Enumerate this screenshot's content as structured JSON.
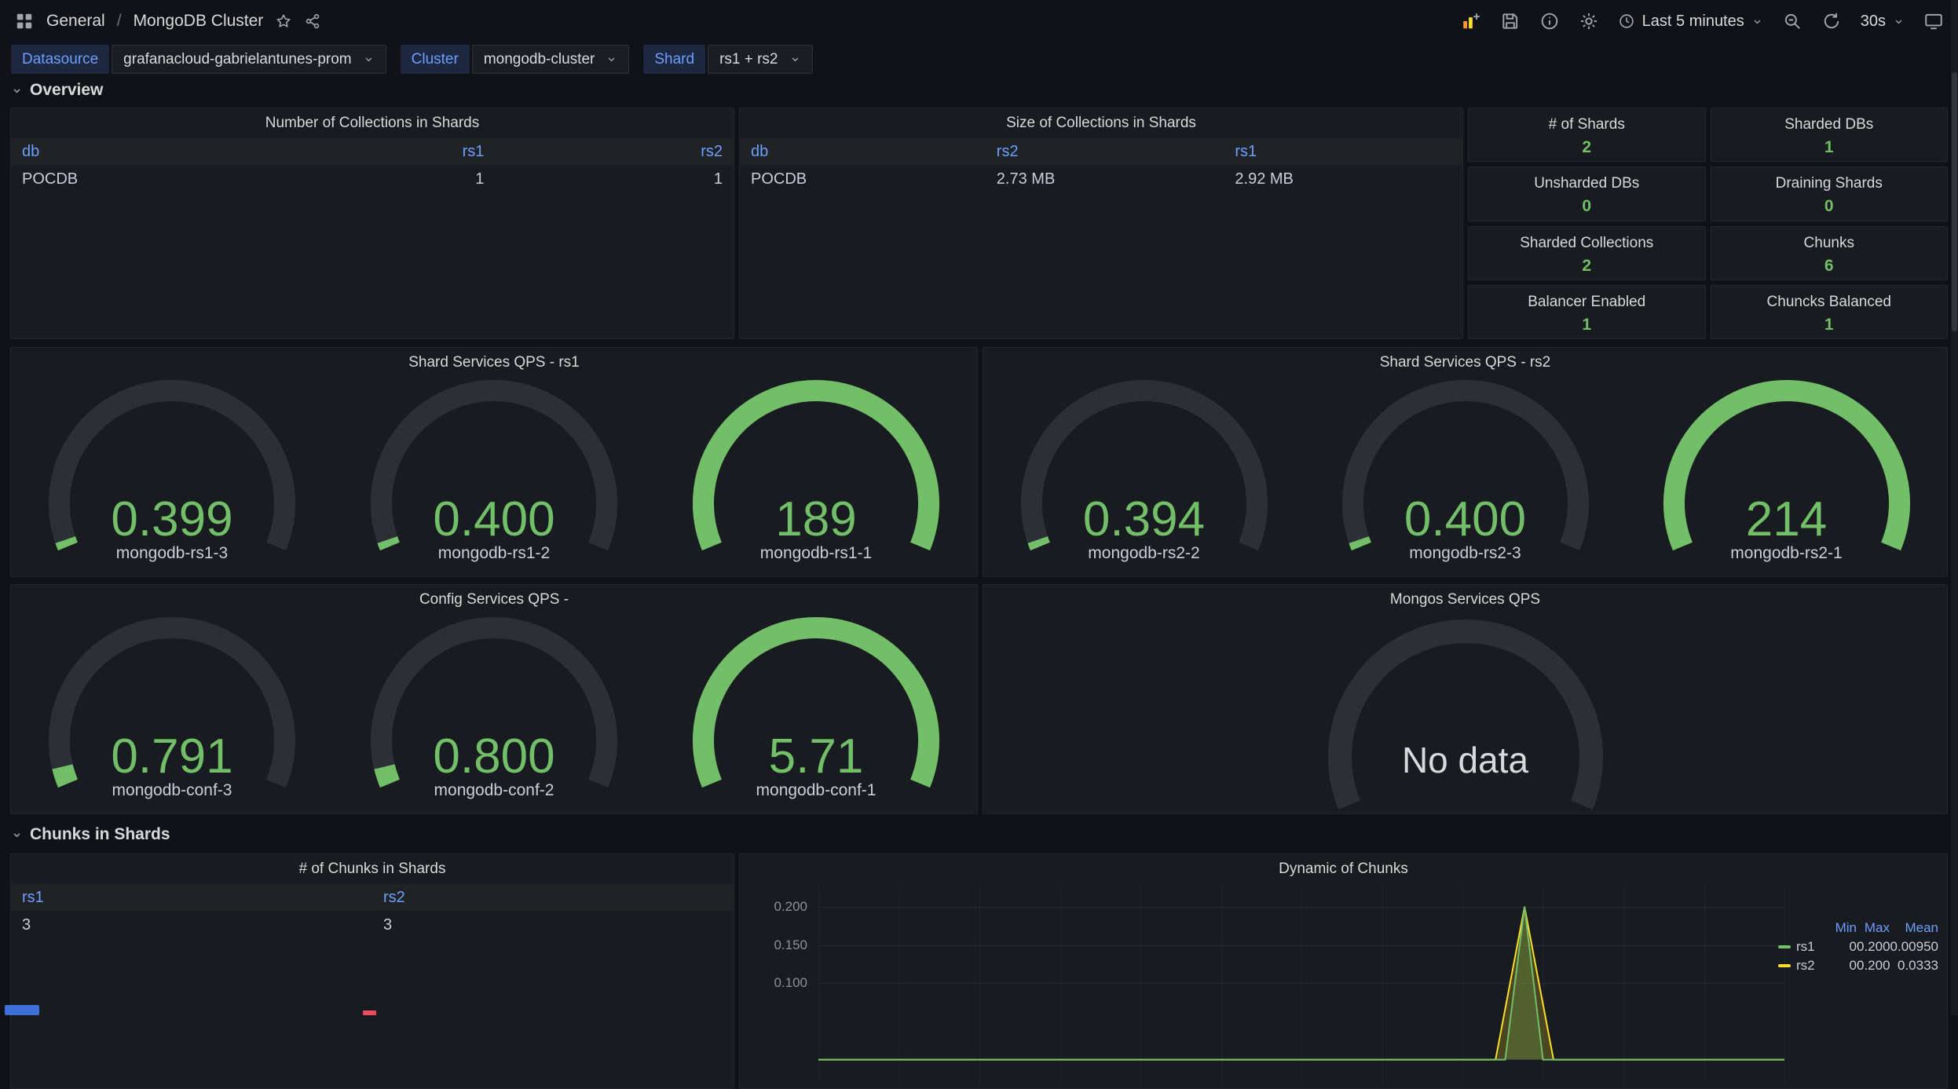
{
  "colors": {
    "green": "#73bf69",
    "yellow": "#fade2a",
    "blue_link": "#6e9fff",
    "gauge_track": "#2c2f36",
    "panel_bg": "#181b1f",
    "page_bg": "#111217"
  },
  "nav": {
    "breadcrumb": {
      "root": "General",
      "separator": "/",
      "current": "MongoDB Cluster"
    },
    "time_range": "Last 5 minutes",
    "refresh_interval": "30s"
  },
  "variables": [
    {
      "label": "Datasource",
      "value": "grafanacloud-gabrielantunes-prom"
    },
    {
      "label": "Cluster",
      "value": "mongodb-cluster"
    },
    {
      "label": "Shard",
      "value": "rs1 + rs2"
    }
  ],
  "sections": {
    "overview": "Overview",
    "chunks": "Chunks in Shards"
  },
  "collections_count_table": {
    "title": "Number of Collections in Shards",
    "columns": [
      "db",
      "rs1",
      "rs2"
    ],
    "rows": [
      [
        "POCDB",
        "1",
        "1"
      ]
    ]
  },
  "collections_size_table": {
    "title": "Size of Collections in Shards",
    "columns": [
      "db",
      "rs2",
      "rs1"
    ],
    "rows": [
      [
        "POCDB",
        "2.73 MB",
        "2.92 MB"
      ]
    ]
  },
  "stats": [
    {
      "title": "# of Shards",
      "value": "2"
    },
    {
      "title": "Sharded DBs",
      "value": "1"
    },
    {
      "title": "Unsharded DBs",
      "value": "0"
    },
    {
      "title": "Draining Shards",
      "value": "0"
    },
    {
      "title": "Sharded Collections",
      "value": "2"
    },
    {
      "title": "Chunks",
      "value": "6"
    },
    {
      "title": "Balancer Enabled",
      "value": "1"
    },
    {
      "title": "Chuncks Balanced",
      "value": "1"
    }
  ],
  "gauge_panels": [
    {
      "title": "Shard Services QPS - rs1",
      "gauges": [
        {
          "value": "0.399",
          "label": "mongodb-rs1-3",
          "fraction": 0.016
        },
        {
          "value": "0.400",
          "label": "mongodb-rs1-2",
          "fraction": 0.016
        },
        {
          "value": "189",
          "label": "mongodb-rs1-1",
          "fraction": 1
        }
      ]
    },
    {
      "title": "Shard Services QPS - rs2",
      "gauges": [
        {
          "value": "0.394",
          "label": "mongodb-rs2-2",
          "fraction": 0.016
        },
        {
          "value": "0.400",
          "label": "mongodb-rs2-3",
          "fraction": 0.016
        },
        {
          "value": "214",
          "label": "mongodb-rs2-1",
          "fraction": 1
        }
      ]
    },
    {
      "title": "Config Services QPS -",
      "gauges": [
        {
          "value": "0.791",
          "label": "mongodb-conf-3",
          "fraction": 0.04
        },
        {
          "value": "0.800",
          "label": "mongodb-conf-2",
          "fraction": 0.04
        },
        {
          "value": "5.71",
          "label": "mongodb-conf-1",
          "fraction": 1
        }
      ]
    }
  ],
  "nodata_panel": {
    "title": "Mongos Services QPS",
    "message": "No data"
  },
  "chunks_table": {
    "title": "# of Chunks in Shards",
    "columns": [
      "rs1",
      "rs2"
    ],
    "rows": [
      [
        "3",
        "3"
      ]
    ]
  },
  "chart_data": {
    "type": "area",
    "title": "Dynamic of Chunks",
    "ylim": [
      0,
      0.226
    ],
    "grid": true,
    "yticks": [
      {
        "label": "0.200",
        "value": 0.2
      },
      {
        "label": "0.150",
        "value": 0.15
      },
      {
        "label": "0.100",
        "value": 0.1
      }
    ],
    "legend": {
      "position": "right",
      "columns": [
        "Min",
        "Max",
        "Mean"
      ],
      "series_stats": [
        {
          "name": "rs1",
          "color": "#73bf69",
          "min": "0",
          "max": "0.200",
          "mean": "0.00950"
        },
        {
          "name": "rs2",
          "color": "#fade2a",
          "min": "0",
          "max": "0.200",
          "mean": "0.0333"
        }
      ]
    },
    "series": [
      {
        "name": "rs1",
        "color": "#73bf69",
        "points": [
          [
            0,
            0
          ],
          [
            0.711,
            0
          ],
          [
            0.731,
            0.2
          ],
          [
            0.75,
            0
          ],
          [
            1,
            0
          ]
        ]
      },
      {
        "name": "rs2",
        "color": "#fade2a",
        "points": [
          [
            0,
            0
          ],
          [
            0.701,
            0
          ],
          [
            0.731,
            0.2
          ],
          [
            0.761,
            0
          ],
          [
            1,
            0
          ]
        ]
      }
    ]
  }
}
